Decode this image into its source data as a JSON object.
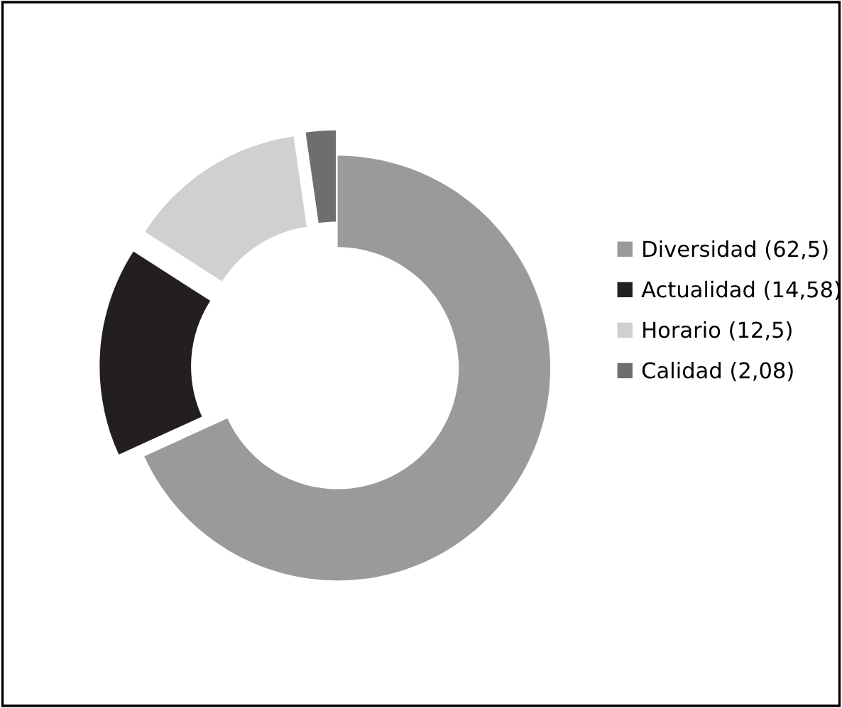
{
  "chart_data": {
    "type": "donut",
    "categories": [
      "Diversidad (62,5)",
      "Actualidad (14,58)",
      "Horario (12,5)",
      "Calidad (2,08)"
    ],
    "values": [
      62.5,
      14.58,
      12.5,
      2.08
    ],
    "colors": [
      "#9a9a9c",
      "#231f20",
      "#d0d0d0",
      "#6d6e70"
    ],
    "legend": "right"
  }
}
